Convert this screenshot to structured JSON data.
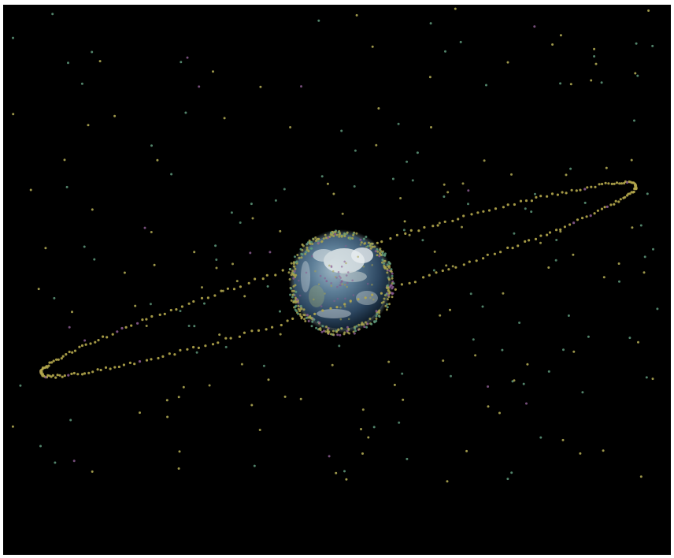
{
  "scene": {
    "background_color": "#000000",
    "frame_color": "#ffffff",
    "subject": "earth-with-orbiting-satellites",
    "colors": {
      "geo_ring": "#b5a84c",
      "leo_cluster": "#a7a24f",
      "scattered_yellow": "#b9b257",
      "scattered_green": "#5f9a7d",
      "scattered_purple": "#8a5a8f",
      "ocean": "#2d4b66",
      "cloud": "#dfe6e8"
    }
  }
}
